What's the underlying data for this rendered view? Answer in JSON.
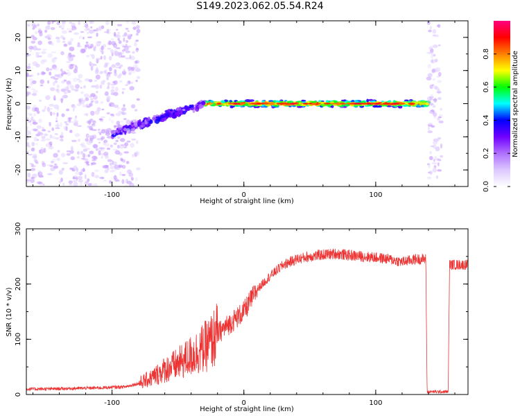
{
  "title": "S149.2023.062.05.54.R24",
  "chart_data": [
    {
      "type": "heatmap",
      "title": "S149.2023.062.05.54.R24",
      "xlabel": "Height of straight line (km)",
      "ylabel": "Frequency (Hz)",
      "xlim": [
        -165,
        170
      ],
      "ylim": [
        -25,
        25
      ],
      "xticks": [
        -100,
        0,
        100
      ],
      "yticks": [
        -20,
        -10,
        0,
        10,
        20
      ],
      "colorbar": {
        "label": "Normalized spectral amplitude",
        "range": [
          0,
          1
        ],
        "ticks": [
          "0.0",
          "0.2",
          "0.4",
          "0.6",
          "0.8"
        ],
        "colors": [
          "#ffffff",
          "#dcc8ff",
          "#b070ff",
          "#7000ff",
          "#0000ff",
          "#00ffff",
          "#00ff00",
          "#ffff00",
          "#ff8000",
          "#ff0000",
          "#ff0080"
        ]
      },
      "features": [
        {
          "description": "carrier line",
          "x_range": [
            -30,
            140
          ],
          "frequency_hz": 0,
          "peak_amplitude": 0.95
        },
        {
          "description": "tone rising from -9 Hz to 0 Hz",
          "x_range": [
            -100,
            -30
          ],
          "frequency_hz_range": [
            -9,
            0
          ],
          "peak_amplitude": 0.4
        },
        {
          "description": "broadband noise",
          "x_range": [
            -165,
            -80
          ],
          "frequency_hz_range": [
            -25,
            25
          ],
          "peak_amplitude": 0.15
        },
        {
          "description": "broadband noise",
          "x_range": [
            140,
            150
          ],
          "frequency_hz_range": [
            -25,
            25
          ],
          "peak_amplitude": 0.15
        }
      ]
    },
    {
      "type": "line",
      "xlabel": "Height of straight line (km)",
      "ylabel": "SNR (10 * v/v)",
      "xlim": [
        -165,
        170
      ],
      "ylim": [
        0,
        300
      ],
      "xticks": [
        -100,
        0,
        100
      ],
      "yticks": [
        0,
        100,
        200,
        300
      ],
      "color": "#ee3333",
      "series": [
        {
          "x": [
            -165,
            -150,
            -130,
            -110,
            -90,
            -80,
            -70,
            -60,
            -50,
            -40,
            -30,
            -25,
            -20,
            -10,
            0,
            10,
            20,
            30,
            40,
            50,
            60,
            70,
            80,
            90,
            100,
            110,
            120,
            130,
            138,
            139,
            145,
            150,
            155,
            156,
            165,
            170
          ],
          "values": [
            10,
            10,
            11,
            12,
            14,
            20,
            30,
            45,
            55,
            70,
            85,
            95,
            110,
            130,
            150,
            190,
            215,
            235,
            245,
            250,
            253,
            255,
            252,
            250,
            248,
            245,
            240,
            245,
            245,
            5,
            5,
            5,
            5,
            235,
            235,
            235
          ]
        }
      ]
    }
  ]
}
